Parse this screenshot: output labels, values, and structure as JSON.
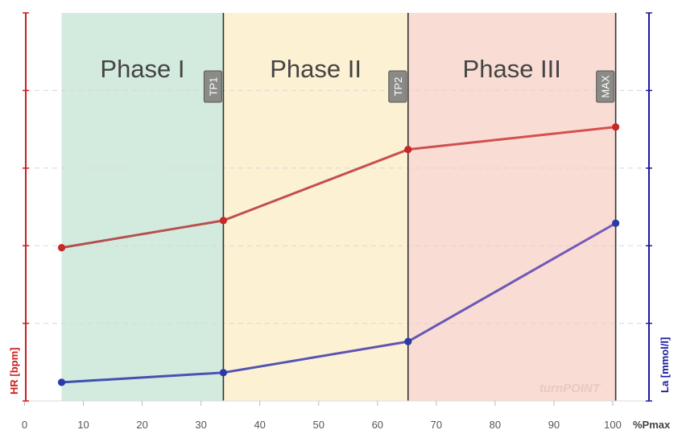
{
  "chart_data": {
    "type": "line",
    "x_unit_label": "%Pmax",
    "xlim": [
      0,
      104
    ],
    "x_ticks": [
      0,
      10,
      20,
      30,
      40,
      50,
      60,
      70,
      80,
      90,
      100
    ],
    "grid": true,
    "left_axis": {
      "label": "HR [bpm]",
      "color": "#cc1f1f"
    },
    "right_axis": {
      "label": "La [mmol/l]",
      "color": "#1a1aa0"
    },
    "phases": [
      {
        "name": "Phase I",
        "x_start": 6.3,
        "x_end": 33.8,
        "color": "#d3ebde"
      },
      {
        "name": "Phase II",
        "x_start": 33.8,
        "x_end": 65.2,
        "color": "#fdf1d4"
      },
      {
        "name": "Phase III",
        "x_start": 65.2,
        "x_end": 100.5,
        "color": "#f9dcd4"
      }
    ],
    "markers": [
      {
        "label": "TP1",
        "x": 33.8
      },
      {
        "label": "TP2",
        "x": 65.2
      },
      {
        "label": "MAX",
        "x": 100.5
      }
    ],
    "series": [
      {
        "name": "HR [bpm]",
        "axis": "left",
        "x": [
          6.3,
          33.8,
          65.2,
          100.5
        ],
        "values": [
          0.395,
          0.465,
          0.648,
          0.706
        ],
        "start_color": "#b05050",
        "end_color": "#d95050",
        "marker_color": "#c62828"
      },
      {
        "name": "La [mmol/l]",
        "axis": "right",
        "x": [
          6.3,
          33.8,
          65.2,
          100.5
        ],
        "values": [
          0.048,
          0.073,
          0.153,
          0.458
        ],
        "start_color": "#3b4fb0",
        "end_color": "#7a5ab8",
        "marker_color": "#2a3aa8"
      }
    ],
    "watermark": "turnPOINT"
  }
}
